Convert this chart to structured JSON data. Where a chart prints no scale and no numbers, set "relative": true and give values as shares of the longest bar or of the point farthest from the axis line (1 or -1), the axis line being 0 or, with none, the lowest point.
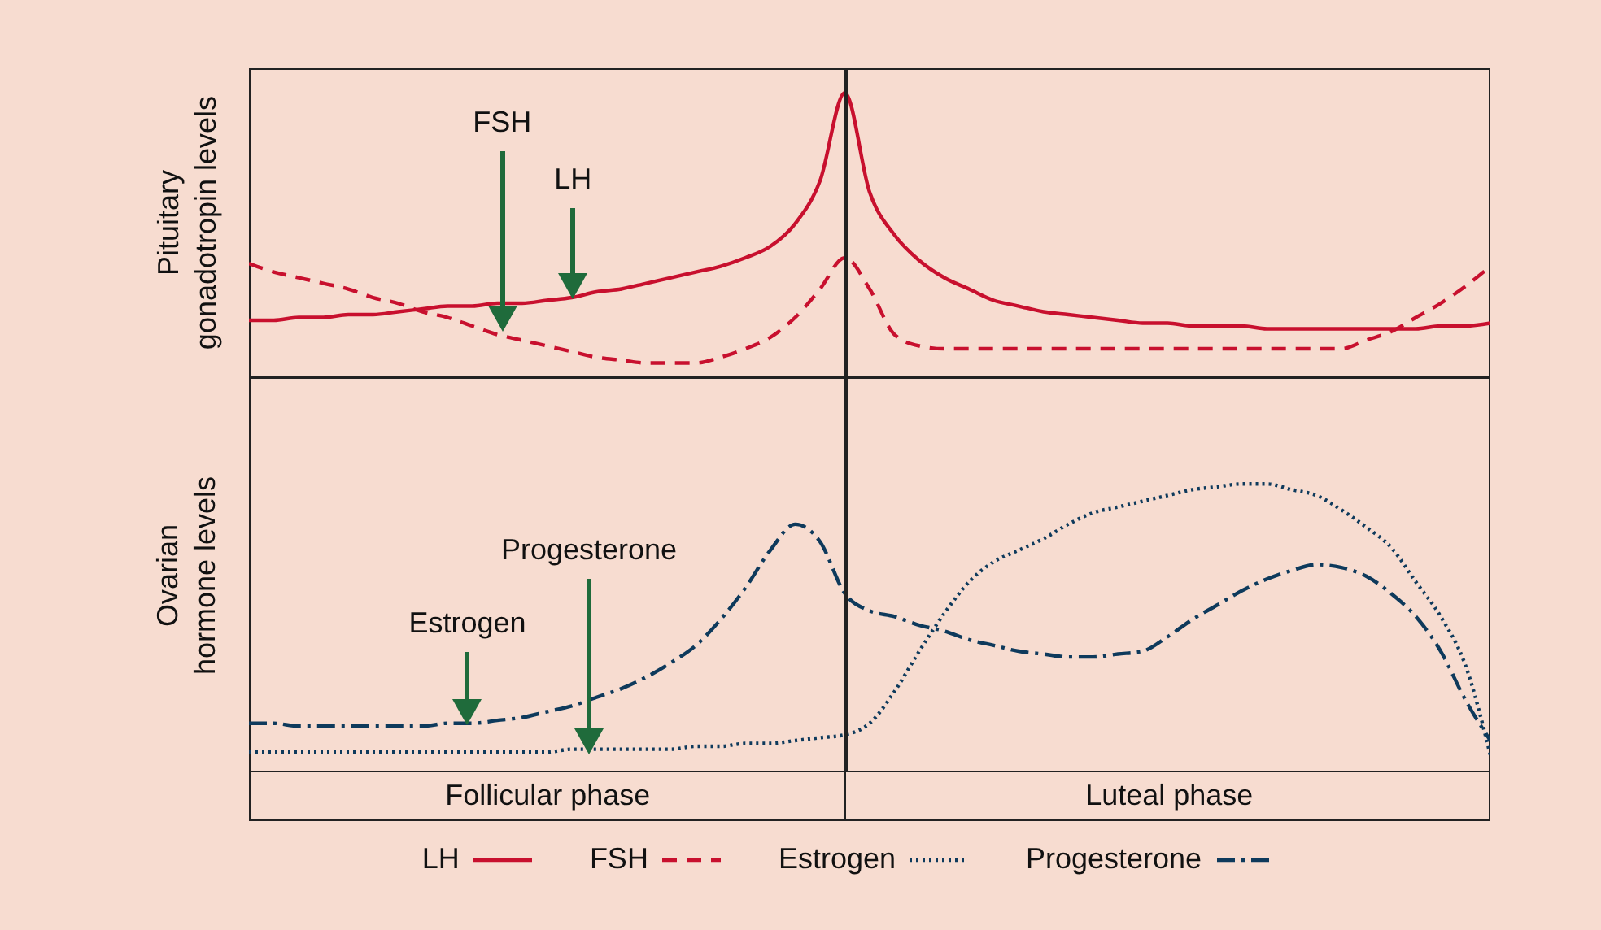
{
  "chart_data": [
    {
      "type": "line",
      "relative": true,
      "ylabel": "Pituitary gonadotropin levels",
      "categories": [
        null,
        null,
        null,
        null,
        null,
        null,
        null,
        null,
        null,
        null,
        null,
        null,
        null,
        null,
        null,
        null,
        null,
        null,
        null,
        null,
        null,
        null,
        null,
        null,
        null,
        null,
        null,
        null,
        null,
        null,
        null,
        null,
        null,
        null,
        null,
        null,
        null,
        null,
        null,
        null,
        null,
        null,
        null,
        null,
        null,
        null,
        null,
        null,
        null,
        null,
        null
      ],
      "series": [
        {
          "name": "LH",
          "color": "#c8102e",
          "line_style": "solid",
          "values": [
            0.2,
            0.2,
            0.21,
            0.21,
            0.22,
            0.22,
            0.23,
            0.24,
            0.25,
            0.25,
            0.26,
            0.26,
            0.27,
            0.28,
            0.3,
            0.31,
            0.33,
            0.35,
            0.37,
            0.39,
            0.42,
            0.46,
            0.54,
            0.69,
            1.0,
            0.65,
            0.5,
            0.41,
            0.35,
            0.31,
            0.27,
            0.25,
            0.23,
            0.22,
            0.21,
            0.2,
            0.19,
            0.19,
            0.18,
            0.18,
            0.18,
            0.17,
            0.17,
            0.17,
            0.17,
            0.17,
            0.17,
            0.17,
            0.18,
            0.18,
            0.19
          ]
        },
        {
          "name": "FSH",
          "color": "#c8102e",
          "line_style": "dashed",
          "values": [
            0.4,
            0.37,
            0.35,
            0.33,
            0.31,
            0.28,
            0.26,
            0.23,
            0.21,
            0.18,
            0.15,
            0.13,
            0.11,
            0.09,
            0.07,
            0.06,
            0.05,
            0.05,
            0.05,
            0.07,
            0.1,
            0.14,
            0.21,
            0.31,
            0.42,
            0.31,
            0.15,
            0.11,
            0.1,
            0.1,
            0.1,
            0.1,
            0.1,
            0.1,
            0.1,
            0.1,
            0.1,
            0.1,
            0.1,
            0.1,
            0.1,
            0.1,
            0.1,
            0.1,
            0.1,
            0.13,
            0.16,
            0.21,
            0.26,
            0.32,
            0.39
          ]
        }
      ],
      "annotations": [
        "FSH",
        "LH"
      ],
      "legend": "bottom"
    },
    {
      "type": "line",
      "relative": true,
      "ylabel": "Ovarian hormone levels",
      "categories": [
        null,
        null,
        null,
        null,
        null,
        null,
        null,
        null,
        null,
        null,
        null,
        null,
        null,
        null,
        null,
        null,
        null,
        null,
        null,
        null,
        null,
        null,
        null,
        null,
        null,
        null,
        null,
        null,
        null,
        null,
        null,
        null,
        null,
        null,
        null,
        null,
        null,
        null,
        null,
        null,
        null,
        null,
        null,
        null,
        null,
        null,
        null,
        null,
        null,
        null,
        null
      ],
      "series": [
        {
          "name": "Estrogen",
          "color": "#0e3a5c",
          "line_style": "dotted",
          "values": [
            0.07,
            0.07,
            0.07,
            0.07,
            0.07,
            0.07,
            0.07,
            0.07,
            0.07,
            0.07,
            0.07,
            0.07,
            0.07,
            0.08,
            0.08,
            0.08,
            0.08,
            0.08,
            0.09,
            0.09,
            0.1,
            0.1,
            0.11,
            0.12,
            0.13,
            0.17,
            0.28,
            0.42,
            0.55,
            0.66,
            0.73,
            0.77,
            0.81,
            0.86,
            0.9,
            0.92,
            0.94,
            0.96,
            0.98,
            0.99,
            1.0,
            1.0,
            0.98,
            0.96,
            0.91,
            0.85,
            0.78,
            0.66,
            0.54,
            0.37,
            0.06
          ]
        },
        {
          "name": "Progesterone",
          "color": "#0e3a5c",
          "line_style": "dashdot",
          "values": [
            0.17,
            0.17,
            0.16,
            0.16,
            0.16,
            0.16,
            0.16,
            0.16,
            0.17,
            0.17,
            0.18,
            0.19,
            0.21,
            0.23,
            0.26,
            0.29,
            0.33,
            0.38,
            0.44,
            0.53,
            0.64,
            0.77,
            0.86,
            0.8,
            0.62,
            0.56,
            0.54,
            0.51,
            0.49,
            0.46,
            0.44,
            0.42,
            0.41,
            0.4,
            0.4,
            0.41,
            0.42,
            0.47,
            0.53,
            0.58,
            0.63,
            0.67,
            0.7,
            0.72,
            0.71,
            0.68,
            0.62,
            0.54,
            0.42,
            0.25,
            0.11
          ]
        }
      ],
      "annotations": [
        "Estrogen",
        "Progesterone",
        "Follicular phase",
        "Luteal phase"
      ],
      "legend": "bottom"
    }
  ]
}
